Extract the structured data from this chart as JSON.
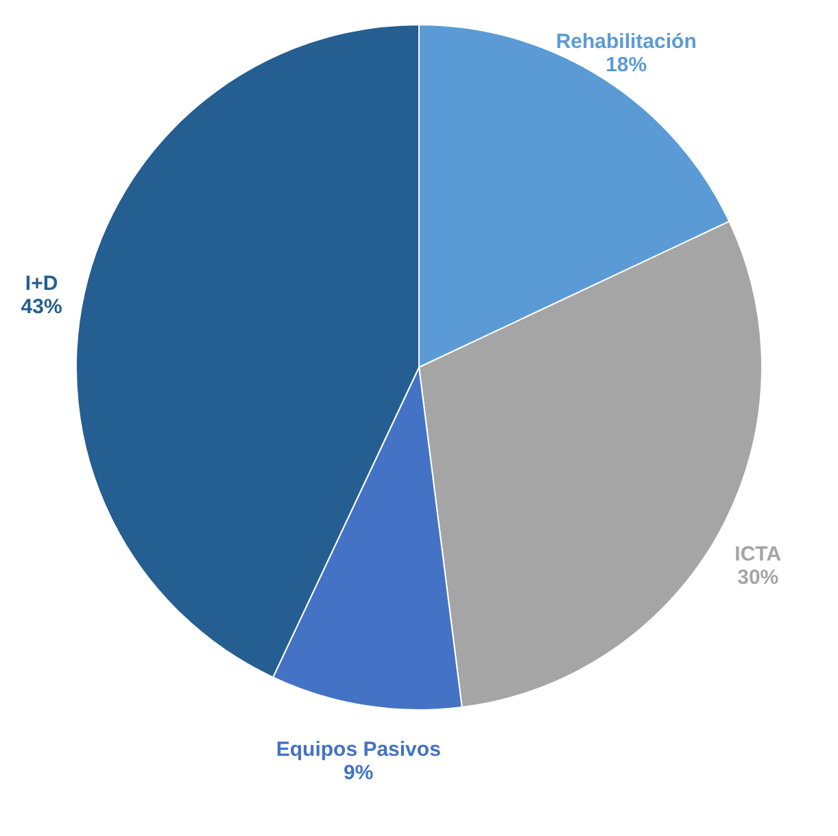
{
  "chart_data": {
    "type": "pie",
    "categories": [
      "Rehabilitación",
      "ICTA",
      "Equipos Pasivos",
      "I+D"
    ],
    "values": [
      18,
      30,
      9,
      43
    ],
    "value_labels": [
      "18%",
      "30%",
      "9%",
      "43%"
    ],
    "colors": [
      "#5b9bd5",
      "#a5a5a5",
      "#4472c4",
      "#255e91"
    ],
    "legend": false
  }
}
